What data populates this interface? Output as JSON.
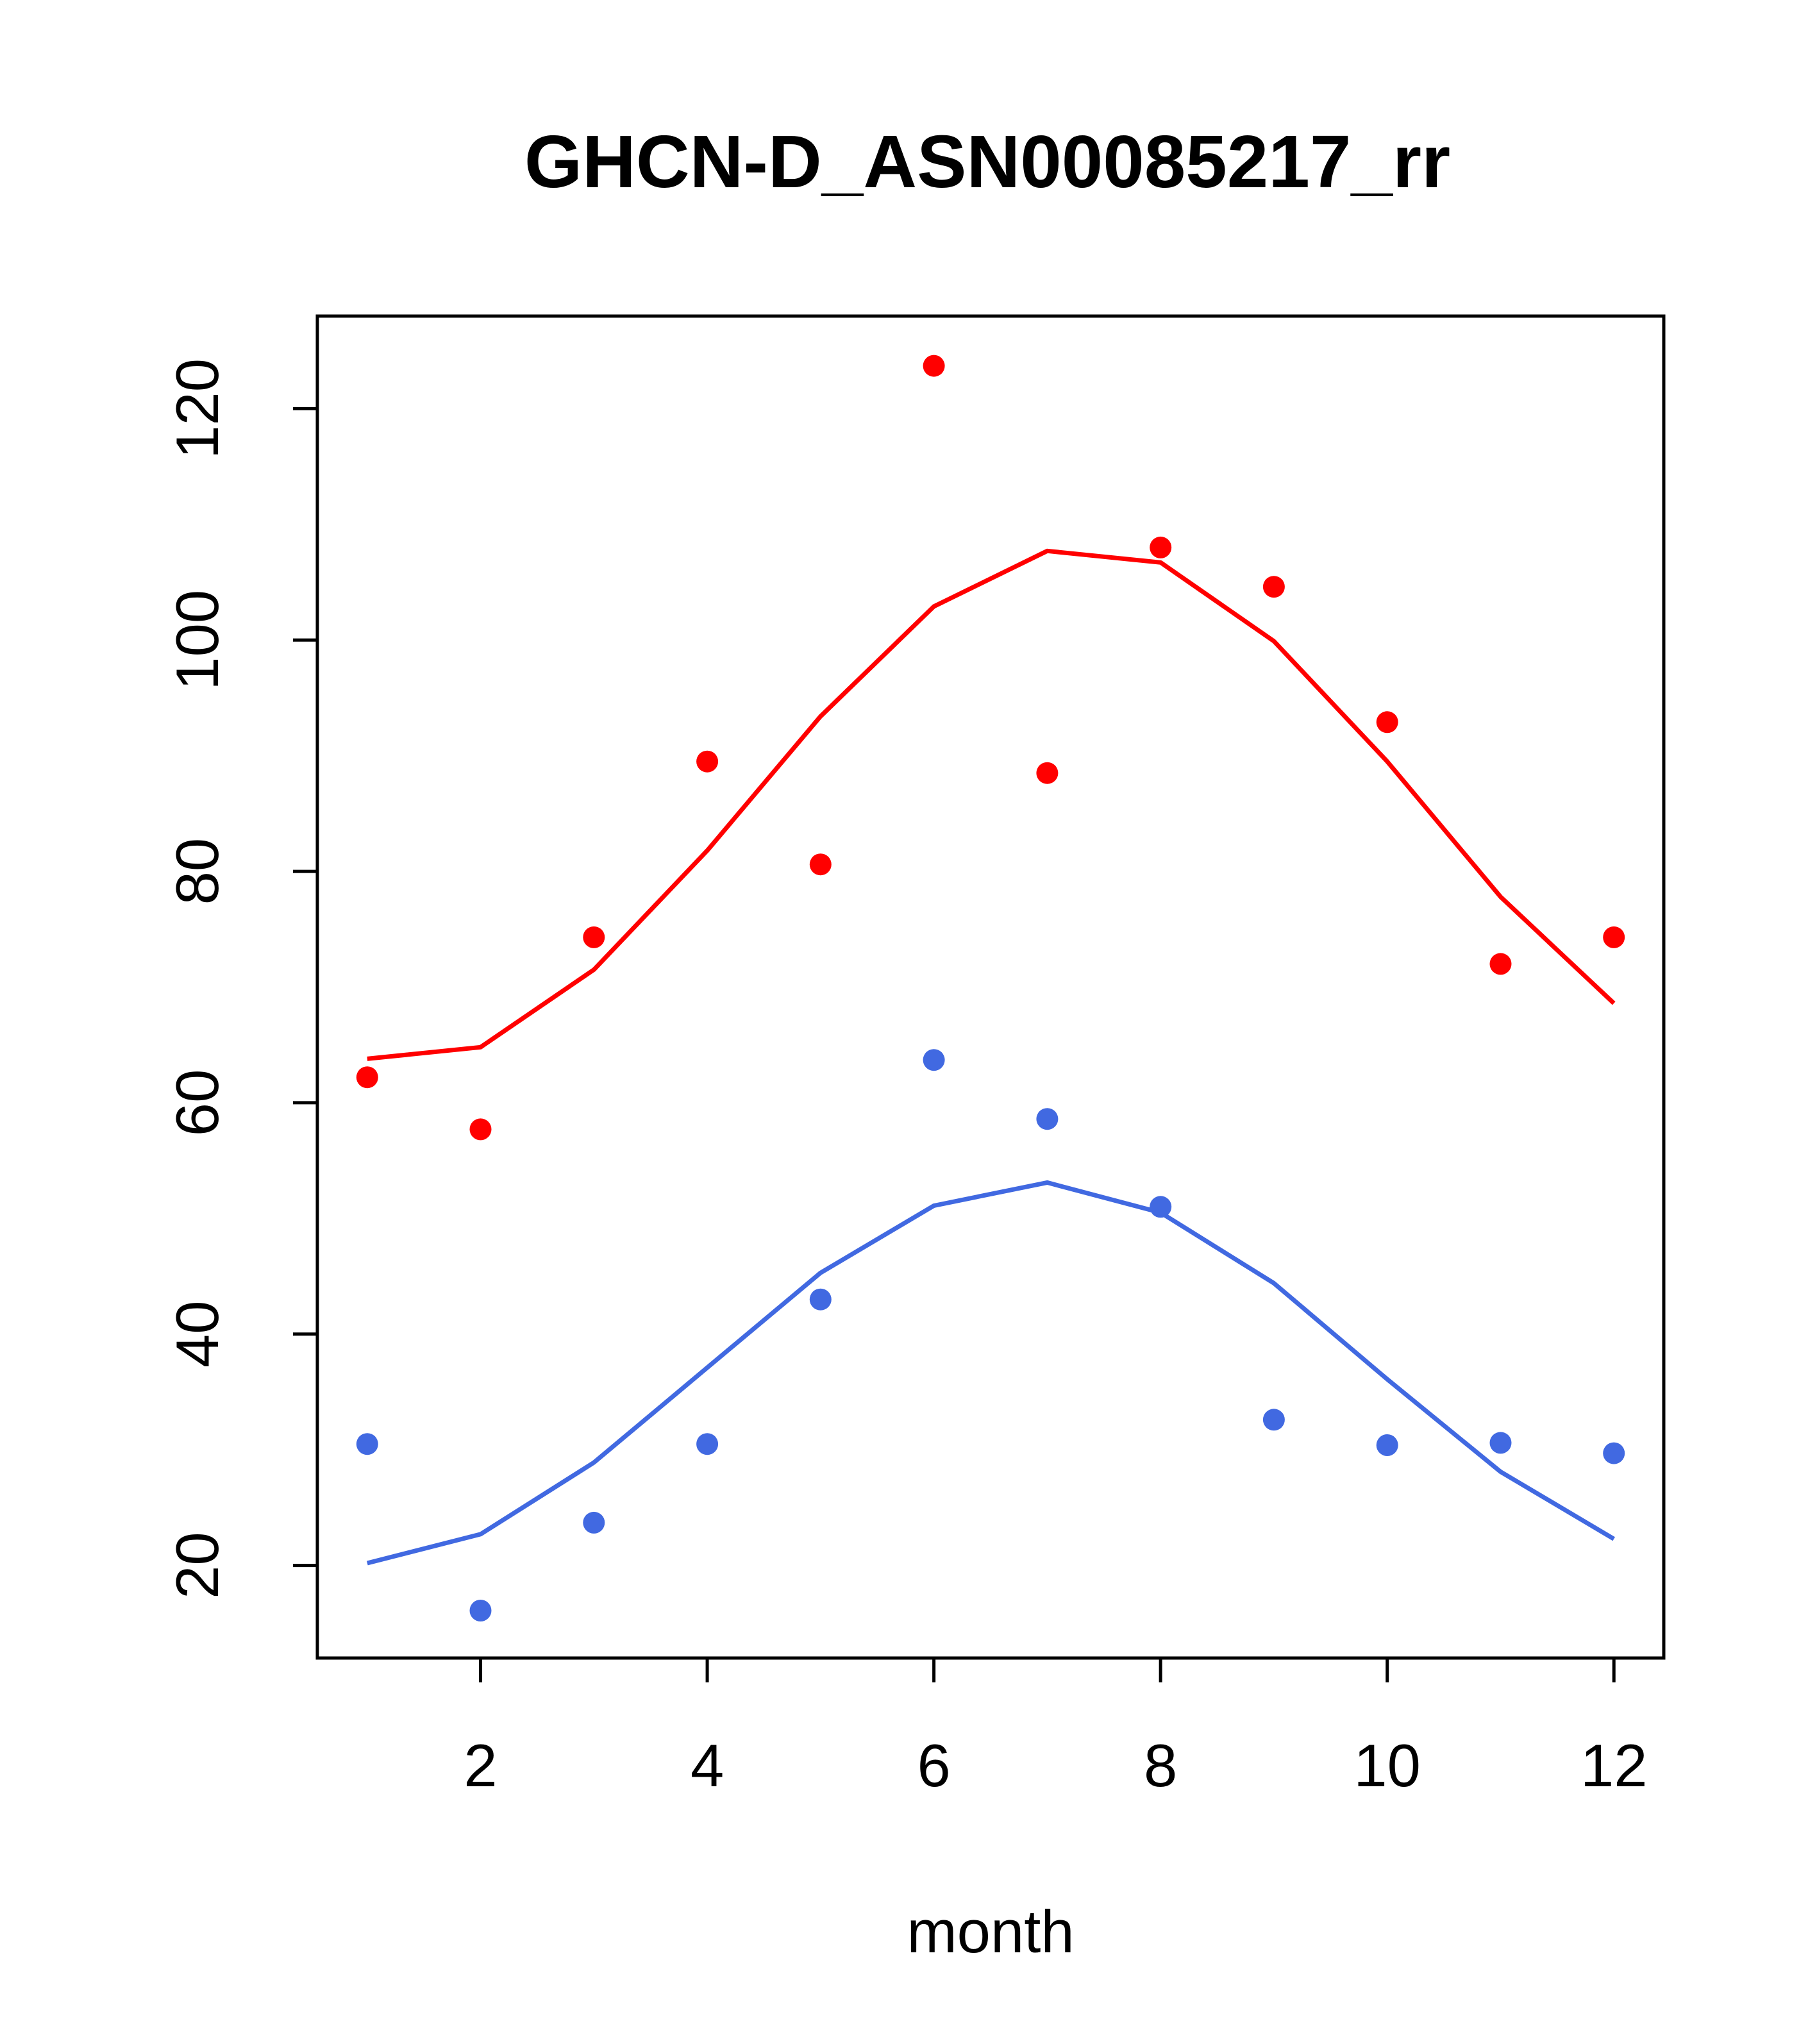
{
  "chart_data": {
    "type": "scatter",
    "title": "GHCN-D_ASN00085217_rr",
    "xlabel": "month",
    "ylabel": "",
    "xlim": [
      0.56,
      12.44
    ],
    "ylim": [
      12,
      128
    ],
    "xticks": [
      2,
      4,
      6,
      8,
      10,
      12
    ],
    "yticks": [
      20,
      40,
      60,
      80,
      100,
      120
    ],
    "xtick_labels": [
      "2",
      "4",
      "6",
      "8",
      "10",
      "12"
    ],
    "ytick_labels": [
      "20",
      "40",
      "60",
      "80",
      "100",
      "120"
    ],
    "grid": false,
    "x": [
      1,
      2,
      3,
      4,
      5,
      6,
      7,
      8,
      9,
      10,
      11,
      12
    ],
    "series": [
      {
        "color": "#ff0000",
        "points": [
          62.2,
          57.7,
          74.3,
          89.5,
          80.6,
          123.7,
          88.5,
          108.0,
          104.6,
          92.9,
          72.0,
          74.3
        ],
        "curve": [
          63.8,
          64.8,
          71.5,
          81.8,
          93.4,
          102.9,
          107.7,
          106.7,
          99.9,
          89.5,
          77.8,
          68.6
        ]
      },
      {
        "color": "#4169e1",
        "points": [
          30.5,
          16.1,
          23.7,
          30.5,
          43.0,
          63.7,
          58.6,
          51.0,
          32.6,
          30.4,
          30.6,
          29.7
        ],
        "curve": [
          20.2,
          22.7,
          28.9,
          37.1,
          45.3,
          51.1,
          53.1,
          50.5,
          44.4,
          36.1,
          28.1,
          22.3
        ]
      }
    ]
  }
}
